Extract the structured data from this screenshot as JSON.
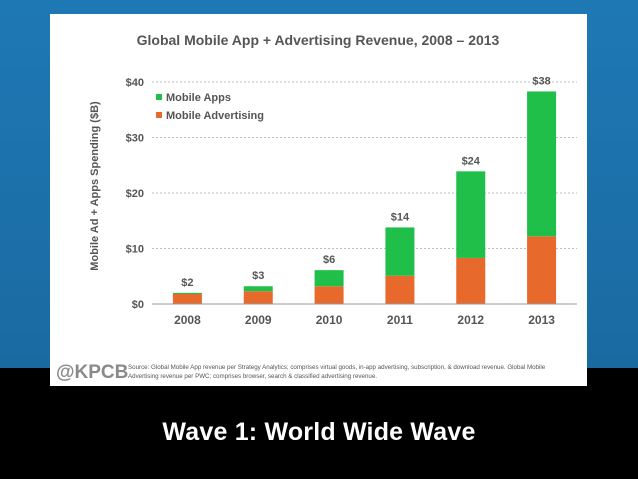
{
  "slide": {
    "caption": "Wave 1: World Wide Wave"
  },
  "colors": {
    "apps": "#1fbf4a",
    "apps_dark": "#17a23c",
    "advertising": "#e8692c",
    "advertising_dark": "#cc5418",
    "axis_text": "#555555",
    "grid": "#bdbdbd",
    "background_blue": "#1a6fa8"
  },
  "chart_data": {
    "type": "bar",
    "stacked": true,
    "title": "Global Mobile App + Advertising Revenue, 2008 – 2013",
    "xlabel": "",
    "ylabel": "Mobile Ad + Apps Spending ($B)",
    "categories": [
      "2008",
      "2009",
      "2010",
      "2011",
      "2012",
      "2013"
    ],
    "series": [
      {
        "name": "Mobile Advertising",
        "values": [
          1.8,
          2.3,
          3.2,
          5.1,
          8.3,
          12.2
        ]
      },
      {
        "name": "Mobile Apps",
        "values": [
          0.2,
          0.9,
          2.9,
          8.7,
          15.6,
          26.1
        ]
      }
    ],
    "totals_labels": [
      "$2",
      "$3",
      "$6",
      "$14",
      "$24",
      "$38"
    ],
    "ylim": [
      0,
      40
    ],
    "yticks": [
      0,
      10,
      20,
      30,
      40
    ],
    "ytick_labels": [
      "$0",
      "$10",
      "$20",
      "$30",
      "$40"
    ],
    "grid": true,
    "legend": [
      "Mobile Apps",
      "Mobile Advertising"
    ],
    "legend_position": "top-left",
    "brand": "@KPCB",
    "source_note": "Source: Global Mobile App revenue per Strategy Analytics; comprises virtual goods, in-app advertising, subscription, & download revenue. Global Mobile Advertising revenue per PWC; comprises browser, search & classified advertising revenue."
  }
}
